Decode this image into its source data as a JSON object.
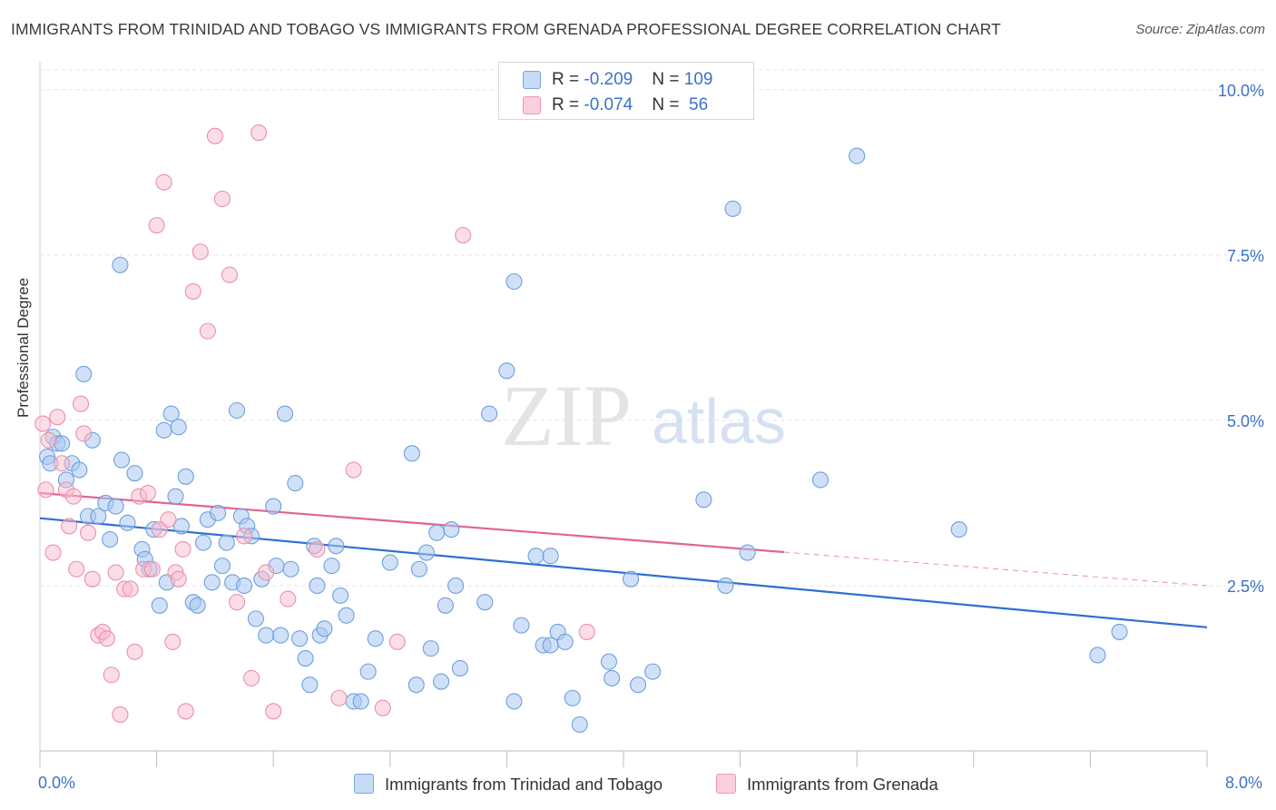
{
  "title": "IMMIGRANTS FROM TRINIDAD AND TOBAGO VS IMMIGRANTS FROM GRENADA PROFESSIONAL DEGREE CORRELATION CHART",
  "source": "Source: ZipAtlas.com",
  "watermark": {
    "zip": "ZIP",
    "atlas": "atlas"
  },
  "legend": {
    "rows": [
      {
        "r_label": "R = ",
        "r_value": "-0.209",
        "n_label": "N = ",
        "n_value": "109"
      },
      {
        "r_label": "R = ",
        "r_value": "-0.074",
        "n_label": "N = ",
        "n_value": " 56"
      }
    ]
  },
  "colors": {
    "blue_fill": "#a9c8f0",
    "blue_stroke": "#6f9fe0",
    "blue_line": "#2f6fd0",
    "pink_fill": "#f7bccd",
    "pink_stroke": "#ec8fab",
    "pink_line": "#e06490",
    "axis_text": "#3a72c8",
    "grid": "#e2e2e2"
  },
  "chart_data": {
    "type": "scatter",
    "title": "IMMIGRANTS FROM TRINIDAD AND TOBAGO VS IMMIGRANTS FROM GRENADA PROFESSIONAL DEGREE CORRELATION CHART",
    "xlabel": "",
    "ylabel": "Professional Degree",
    "xlim": [
      0,
      8
    ],
    "ylim": [
      0,
      10.3
    ],
    "x_tick_labels": [
      "0.0%",
      "8.0%"
    ],
    "y_tick_labels": [
      "2.5%",
      "5.0%",
      "7.5%",
      "10.0%"
    ],
    "y_ticks": [
      2.5,
      5.0,
      7.5,
      10.0
    ],
    "legend_position": "top-center",
    "grid": true,
    "series": [
      {
        "name": "Immigrants from Trinidad and Tobago",
        "color": "#a9c8f0",
        "trend": {
          "x": [
            0,
            8
          ],
          "y": [
            3.52,
            1.87
          ]
        },
        "points": [
          [
            0.05,
            4.45
          ],
          [
            0.07,
            4.35
          ],
          [
            0.09,
            4.75
          ],
          [
            0.12,
            4.65
          ],
          [
            0.15,
            4.65
          ],
          [
            0.18,
            4.1
          ],
          [
            0.22,
            4.35
          ],
          [
            0.27,
            4.25
          ],
          [
            0.3,
            5.7
          ],
          [
            0.33,
            3.55
          ],
          [
            0.36,
            4.7
          ],
          [
            0.4,
            3.55
          ],
          [
            0.45,
            3.75
          ],
          [
            0.48,
            3.2
          ],
          [
            0.52,
            3.7
          ],
          [
            0.56,
            4.4
          ],
          [
            0.6,
            3.45
          ],
          [
            0.65,
            4.2
          ],
          [
            0.7,
            3.05
          ],
          [
            0.72,
            2.9
          ],
          [
            0.75,
            2.75
          ],
          [
            0.78,
            3.35
          ],
          [
            0.82,
            2.2
          ],
          [
            0.85,
            4.85
          ],
          [
            0.87,
            2.55
          ],
          [
            0.9,
            5.1
          ],
          [
            0.93,
            3.85
          ],
          [
            0.97,
            3.4
          ],
          [
            1.0,
            4.15
          ],
          [
            1.05,
            2.25
          ],
          [
            1.08,
            2.2
          ],
          [
            1.12,
            3.15
          ],
          [
            1.15,
            3.5
          ],
          [
            1.18,
            2.55
          ],
          [
            1.22,
            3.6
          ],
          [
            1.25,
            2.8
          ],
          [
            1.28,
            3.15
          ],
          [
            1.32,
            2.55
          ],
          [
            1.35,
            5.15
          ],
          [
            1.38,
            3.55
          ],
          [
            1.42,
            3.4
          ],
          [
            1.45,
            3.25
          ],
          [
            1.48,
            2.0
          ],
          [
            1.52,
            2.6
          ],
          [
            1.55,
            1.75
          ],
          [
            1.6,
            3.7
          ],
          [
            1.65,
            1.75
          ],
          [
            1.68,
            5.1
          ],
          [
            1.72,
            2.75
          ],
          [
            1.75,
            4.05
          ],
          [
            1.78,
            1.7
          ],
          [
            1.82,
            1.4
          ],
          [
            1.85,
            1.0
          ],
          [
            1.88,
            3.1
          ],
          [
            1.9,
            2.5
          ],
          [
            1.92,
            1.75
          ],
          [
            1.95,
            1.85
          ],
          [
            2.0,
            2.8
          ],
          [
            2.03,
            3.1
          ],
          [
            2.06,
            2.35
          ],
          [
            2.1,
            2.05
          ],
          [
            2.15,
            0.75
          ],
          [
            2.2,
            0.75
          ],
          [
            2.25,
            1.2
          ],
          [
            2.4,
            2.85
          ],
          [
            2.55,
            4.5
          ],
          [
            2.58,
            1.0
          ],
          [
            2.6,
            2.75
          ],
          [
            2.65,
            3.0
          ],
          [
            2.68,
            1.55
          ],
          [
            2.72,
            3.3
          ],
          [
            2.75,
            1.05
          ],
          [
            2.78,
            2.2
          ],
          [
            2.82,
            3.35
          ],
          [
            2.85,
            2.5
          ],
          [
            3.05,
            2.25
          ],
          [
            3.2,
            5.75
          ],
          [
            3.25,
            0.75
          ],
          [
            3.3,
            1.9
          ],
          [
            3.4,
            2.95
          ],
          [
            3.45,
            1.6
          ],
          [
            3.5,
            2.95
          ],
          [
            3.5,
            1.6
          ],
          [
            3.55,
            1.8
          ],
          [
            3.6,
            1.65
          ],
          [
            3.65,
            0.8
          ],
          [
            3.7,
            0.4
          ],
          [
            3.9,
            1.35
          ],
          [
            3.92,
            1.1
          ],
          [
            4.05,
            2.6
          ],
          [
            4.1,
            1.0
          ],
          [
            4.2,
            1.2
          ],
          [
            4.55,
            3.8
          ],
          [
            4.7,
            2.5
          ],
          [
            4.85,
            3.0
          ],
          [
            5.35,
            4.1
          ],
          [
            6.3,
            3.35
          ],
          [
            7.25,
            1.45
          ],
          [
            7.4,
            1.8
          ],
          [
            0.55,
            7.35
          ],
          [
            0.95,
            4.9
          ],
          [
            1.62,
            2.8
          ],
          [
            2.3,
            1.7
          ],
          [
            2.88,
            1.25
          ],
          [
            3.25,
            7.1
          ],
          [
            3.08,
            5.1
          ],
          [
            4.75,
            8.2
          ],
          [
            5.6,
            9.0
          ],
          [
            1.4,
            2.5
          ]
        ]
      },
      {
        "name": "Immigrants from Grenada",
        "color": "#f7bccd",
        "trend": {
          "x": [
            0,
            8
          ],
          "y": [
            3.9,
            2.5
          ]
        },
        "points": [
          [
            0.02,
            4.95
          ],
          [
            0.04,
            3.95
          ],
          [
            0.06,
            4.7
          ],
          [
            0.09,
            3.0
          ],
          [
            0.12,
            5.05
          ],
          [
            0.15,
            4.35
          ],
          [
            0.18,
            3.95
          ],
          [
            0.2,
            3.4
          ],
          [
            0.23,
            3.85
          ],
          [
            0.25,
            2.75
          ],
          [
            0.28,
            5.25
          ],
          [
            0.3,
            4.8
          ],
          [
            0.33,
            3.3
          ],
          [
            0.36,
            2.6
          ],
          [
            0.4,
            1.75
          ],
          [
            0.43,
            1.8
          ],
          [
            0.46,
            1.7
          ],
          [
            0.49,
            1.15
          ],
          [
            0.52,
            2.7
          ],
          [
            0.55,
            0.55
          ],
          [
            0.58,
            2.45
          ],
          [
            0.62,
            2.45
          ],
          [
            0.65,
            1.5
          ],
          [
            0.68,
            3.85
          ],
          [
            0.71,
            2.75
          ],
          [
            0.74,
            3.9
          ],
          [
            0.77,
            2.75
          ],
          [
            0.8,
            7.95
          ],
          [
            0.82,
            3.35
          ],
          [
            0.85,
            8.6
          ],
          [
            0.88,
            3.5
          ],
          [
            0.91,
            1.65
          ],
          [
            0.93,
            2.7
          ],
          [
            0.95,
            2.6
          ],
          [
            0.98,
            3.05
          ],
          [
            1.0,
            0.6
          ],
          [
            1.05,
            6.95
          ],
          [
            1.1,
            7.55
          ],
          [
            1.15,
            6.35
          ],
          [
            1.2,
            9.3
          ],
          [
            1.25,
            8.35
          ],
          [
            1.3,
            7.2
          ],
          [
            1.35,
            2.25
          ],
          [
            1.4,
            3.25
          ],
          [
            1.45,
            1.1
          ],
          [
            1.5,
            9.35
          ],
          [
            1.55,
            2.7
          ],
          [
            1.6,
            0.6
          ],
          [
            1.7,
            2.3
          ],
          [
            1.9,
            3.05
          ],
          [
            2.05,
            0.8
          ],
          [
            2.15,
            4.25
          ],
          [
            2.35,
            0.65
          ],
          [
            2.45,
            1.65
          ],
          [
            2.9,
            7.8
          ],
          [
            3.75,
            1.8
          ]
        ]
      }
    ]
  },
  "bottom_legend": {
    "item1": "Immigrants from Trinidad and Tobago",
    "item2": "Immigrants from Grenada"
  }
}
